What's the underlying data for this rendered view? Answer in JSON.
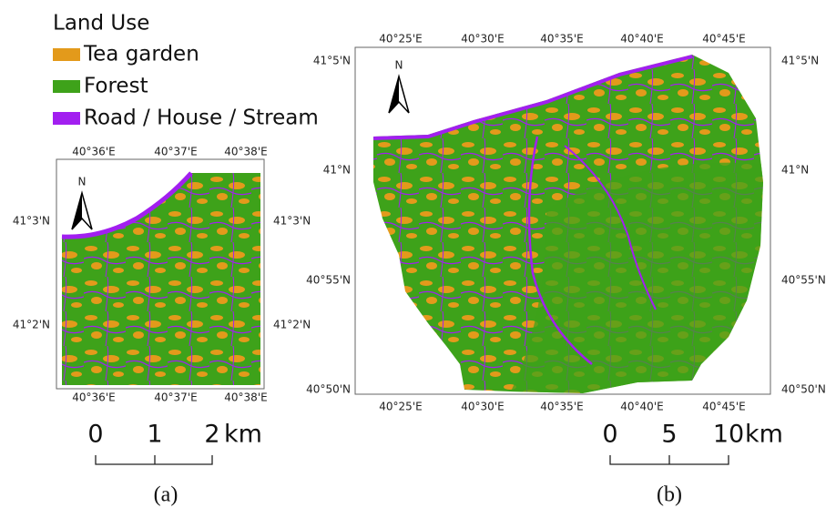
{
  "legend": {
    "title": "Land Use",
    "items": [
      {
        "label": "Tea garden",
        "color": "#e39a1b"
      },
      {
        "label": "Forest",
        "color": "#3ea21a"
      },
      {
        "label": "Road / House / Stream",
        "color": "#a21ff0"
      }
    ]
  },
  "panels": [
    {
      "caption": "(a)",
      "north": "N",
      "top_ticks": [
        "40°36'E",
        "40°37'E",
        "40°38'E"
      ],
      "bottom_ticks": [
        "40°36'E",
        "40°37'E",
        "40°38'E"
      ],
      "left_ticks": [
        "41°3'N",
        "41°2'N"
      ],
      "right_ticks": [
        "41°3'N",
        "41°2'N"
      ],
      "scale": {
        "labels": [
          "0",
          "1",
          "2"
        ],
        "unit": "km"
      }
    },
    {
      "caption": "(b)",
      "north": "N",
      "top_ticks": [
        "40°25'E",
        "40°30'E",
        "40°35'E",
        "40°40'E",
        "40°45'E"
      ],
      "bottom_ticks": [
        "40°25'E",
        "40°30'E",
        "40°35'E",
        "40°40'E",
        "40°45'E"
      ],
      "left_ticks": [
        "41°5'N",
        "41°N",
        "40°55'N",
        "40°50'N"
      ],
      "right_ticks": [
        "41°5'N",
        "41°N",
        "40°55'N",
        "40°50'N"
      ],
      "scale": {
        "labels": [
          "0",
          "5",
          "10"
        ],
        "unit": "km"
      }
    }
  ]
}
